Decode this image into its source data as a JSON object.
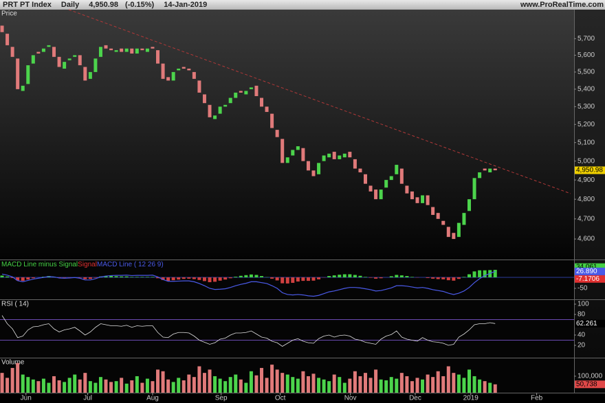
{
  "header": {
    "symbol": "PRT PT Index",
    "period": "Daily",
    "last": "4,950.98",
    "change": "(-0.15%)",
    "date": "14-Jan-2019",
    "site": "www.ProRealTime.com"
  },
  "chart_data": [
    {
      "type": "candlestick",
      "title": "Price",
      "up_color": "#4cd44c",
      "down_color": "#e07a7a",
      "log_scale": true,
      "xlim": [
        -0.4,
        110.2
      ],
      "ylim": [
        4500,
        5880
      ],
      "yticks": [
        {
          "value": 4600,
          "label": "4,600"
        },
        {
          "value": 4700,
          "label": "4,700"
        },
        {
          "value": 4800,
          "label": "4,800"
        },
        {
          "value": 4900,
          "label": "4,900"
        },
        {
          "value": 5000,
          "label": "5,000"
        },
        {
          "value": 5100,
          "label": "5,100"
        },
        {
          "value": 5200,
          "label": "5,200"
        },
        {
          "value": 5300,
          "label": "5,300"
        },
        {
          "value": 5400,
          "label": "5,400"
        },
        {
          "value": 5500,
          "label": "5,500"
        },
        {
          "value": 5600,
          "label": "5,600"
        },
        {
          "value": 5700,
          "label": "5,700"
        }
      ],
      "open": [
        5780,
        5730,
        5650,
        5580,
        5390,
        5430,
        5550,
        5620,
        5620,
        5650,
        5650,
        5590,
        5520,
        5570,
        5590,
        5600,
        5530,
        5460,
        5500,
        5590,
        5660,
        5640,
        5620,
        5640,
        5620,
        5640,
        5610,
        5640,
        5620,
        5650,
        5630,
        5550,
        5470,
        5450,
        5510,
        5530,
        5520,
        5500,
        5450,
        5370,
        5310,
        5230,
        5260,
        5300,
        5320,
        5350,
        5390,
        5370,
        5400,
        5420,
        5350,
        5300,
        5260,
        5170,
        5120,
        4990,
        5030,
        5060,
        5070,
        5000,
        4950,
        4930,
        5000,
        5020,
        5050,
        5010,
        5020,
        5050,
        5010,
        4960,
        4930,
        4870,
        4850,
        4800,
        4860,
        4900,
        4930,
        4960,
        4870,
        4840,
        4810,
        4780,
        4820,
        4760,
        4730,
        4690,
        4660,
        4630,
        4610,
        4670,
        4740,
        4800,
        4910,
        4960,
        4940,
        4960
      ],
      "close": [
        5740,
        5660,
        5590,
        5400,
        5420,
        5540,
        5600,
        5610,
        5640,
        5660,
        5590,
        5530,
        5560,
        5580,
        5600,
        5540,
        5450,
        5500,
        5580,
        5650,
        5640,
        5630,
        5630,
        5620,
        5640,
        5610,
        5640,
        5630,
        5640,
        5640,
        5550,
        5460,
        5450,
        5500,
        5520,
        5520,
        5510,
        5460,
        5380,
        5320,
        5240,
        5250,
        5300,
        5310,
        5350,
        5380,
        5380,
        5390,
        5410,
        5360,
        5300,
        5270,
        5180,
        5130,
        4990,
        5020,
        5060,
        5080,
        5000,
        4950,
        4920,
        4990,
        5030,
        5040,
        5010,
        5030,
        5040,
        5020,
        4960,
        4940,
        4880,
        4840,
        4800,
        4850,
        4900,
        4920,
        4980,
        4880,
        4830,
        4800,
        4780,
        4820,
        4770,
        4720,
        4700,
        4670,
        4610,
        4600,
        4680,
        4730,
        4800,
        4910,
        4940,
        4950,
        4960,
        4950.98
      ],
      "last_label": "4,950.98",
      "last_box_color": "#f0d000",
      "last_text_color": "#000"
    },
    {
      "type": "macd",
      "xlim": [
        -0.4,
        110.2
      ],
      "ylim": [
        -100,
        78
      ],
      "yticks": [
        -50
      ],
      "levels": [
        0
      ],
      "level_color": "#2a3a9a",
      "series": [
        {
          "name": "MACD Line minus Signal",
          "color": "#44d044",
          "neg_color": "#d04040",
          "values": [
            8,
            4,
            -3,
            -14,
            -16,
            -10,
            -4,
            0,
            3,
            6,
            3,
            -2,
            -2,
            -1,
            0,
            -2,
            -8,
            -7,
            -2,
            4,
            6,
            6,
            5,
            4,
            4,
            2,
            2,
            2,
            2,
            2,
            -4,
            -12,
            -16,
            -13,
            -10,
            -7,
            -6,
            -8,
            -12,
            -17,
            -22,
            -20,
            -15,
            -10,
            -4,
            3,
            7,
            10,
            13,
            11,
            6,
            1,
            -6,
            -14,
            -27,
            -28,
            -25,
            -19,
            -16,
            -16,
            -15,
            -9,
            -1,
            6,
            9,
            12,
            14,
            14,
            11,
            7,
            2,
            -2,
            -6,
            -4,
            0,
            5,
            11,
            9,
            6,
            2,
            -1,
            0,
            -3,
            -6,
            -8,
            -9,
            -13,
            -15,
            -7,
            2,
            14,
            27,
            32,
            32,
            33,
            34.061
          ],
          "last_label": "34.061",
          "text_color": "#000"
        },
        {
          "name": "Signal",
          "color": "#e03030",
          "last": -7.1706,
          "last_label": "-7.1706",
          "text_color": "#fff"
        },
        {
          "name": "MACD Line ( 12 26 9)",
          "color": "#4a5ae8",
          "values": [
            15,
            10,
            2,
            -15,
            -20,
            -14,
            -8,
            -4,
            0,
            4,
            2,
            -3,
            -4,
            -3,
            -1,
            -4,
            -12,
            -12,
            -6,
            2,
            6,
            8,
            9,
            9,
            10,
            8,
            9,
            9,
            9,
            10,
            2,
            -10,
            -18,
            -18,
            -17,
            -16,
            -16,
            -20,
            -28,
            -38,
            -50,
            -55,
            -54,
            -52,
            -46,
            -38,
            -32,
            -27,
            -20,
            -20,
            -24,
            -28,
            -38,
            -50,
            -70,
            -78,
            -80,
            -78,
            -80,
            -84,
            -86,
            -82,
            -74,
            -66,
            -62,
            -56,
            -50,
            -46,
            -46,
            -48,
            -52,
            -56,
            -62,
            -60,
            -54,
            -48,
            -38,
            -38,
            -40,
            -44,
            -48,
            -46,
            -50,
            -56,
            -60,
            -64,
            -72,
            -78,
            -72,
            -62,
            -46,
            -24,
            -6,
            8,
            18,
            26.89
          ],
          "last_label": "26.890",
          "text_color": "#fff"
        }
      ]
    },
    {
      "type": "line",
      "title": "RSI ( 14)",
      "color": "#e0e0e0",
      "xlim": [
        -0.4,
        110.2
      ],
      "ylim": [
        -4,
        108
      ],
      "yticks": [
        20,
        40,
        80,
        100
      ],
      "levels": [
        30,
        70
      ],
      "level_color": "#6a4ab0",
      "values": [
        78,
        62,
        52,
        35,
        38,
        50,
        56,
        57,
        60,
        62,
        52,
        46,
        50,
        52,
        55,
        48,
        40,
        46,
        55,
        62,
        60,
        58,
        58,
        57,
        59,
        55,
        58,
        57,
        58,
        58,
        45,
        36,
        35,
        42,
        45,
        45,
        44,
        38,
        30,
        26,
        22,
        25,
        32,
        34,
        40,
        44,
        44,
        45,
        48,
        42,
        36,
        34,
        28,
        25,
        18,
        24,
        30,
        33,
        28,
        25,
        24,
        33,
        38,
        40,
        36,
        39,
        40,
        38,
        32,
        30,
        26,
        24,
        22,
        32,
        38,
        41,
        48,
        36,
        32,
        30,
        28,
        35,
        30,
        27,
        26,
        24,
        20,
        22,
        36,
        42,
        50,
        60,
        62,
        62,
        64,
        62.261
      ],
      "last_label": "62.261",
      "last_box_color": "#000",
      "last_text_color": "#fff"
    },
    {
      "type": "volume",
      "title": "Volume",
      "xlim": [
        -0.4,
        110.2
      ],
      "ylim": [
        0,
        208000
      ],
      "yticks": [
        {
          "value": 100000,
          "label": "100,000"
        }
      ],
      "xticks": [
        {
          "value": 4.6,
          "label": "Jun"
        },
        {
          "value": 16.5,
          "label": "Jul"
        },
        {
          "value": 29,
          "label": "Aug"
        },
        {
          "value": 42.2,
          "label": "Sep"
        },
        {
          "value": 53.6,
          "label": "Oct"
        },
        {
          "value": 67.1,
          "label": "Nov"
        },
        {
          "value": 79.6,
          "label": "Dec"
        },
        {
          "value": 90.3,
          "label": "2019"
        },
        {
          "value": 103,
          "label": "Feb"
        }
      ],
      "values": [
        120000,
        90000,
        150000,
        180000,
        110000,
        95000,
        80000,
        70000,
        85000,
        60000,
        100000,
        75000,
        65000,
        90000,
        110000,
        80000,
        120000,
        70000,
        60000,
        95000,
        80000,
        65000,
        70000,
        90000,
        55000,
        75000,
        100000,
        60000,
        85000,
        70000,
        140000,
        130000,
        80000,
        65000,
        90000,
        75000,
        110000,
        95000,
        160000,
        120000,
        140000,
        100000,
        85000,
        70000,
        95000,
        110000,
        80000,
        60000,
        130000,
        105000,
        150000,
        90000,
        170000,
        140000,
        120000,
        110000,
        95000,
        85000,
        130000,
        100000,
        115000,
        90000,
        80000,
        70000,
        110000,
        95000,
        60000,
        85000,
        130000,
        100000,
        120000,
        90000,
        140000,
        80000,
        75000,
        95000,
        85000,
        120000,
        100000,
        70000,
        90000,
        80000,
        110000,
        95000,
        130000,
        100000,
        160000,
        120000,
        110000,
        90000,
        140000,
        100000,
        80000,
        70000,
        60000,
        50738
      ],
      "last_label": "50,738",
      "last_box_color": "#e04848",
      "last_text_color": "#000"
    }
  ]
}
